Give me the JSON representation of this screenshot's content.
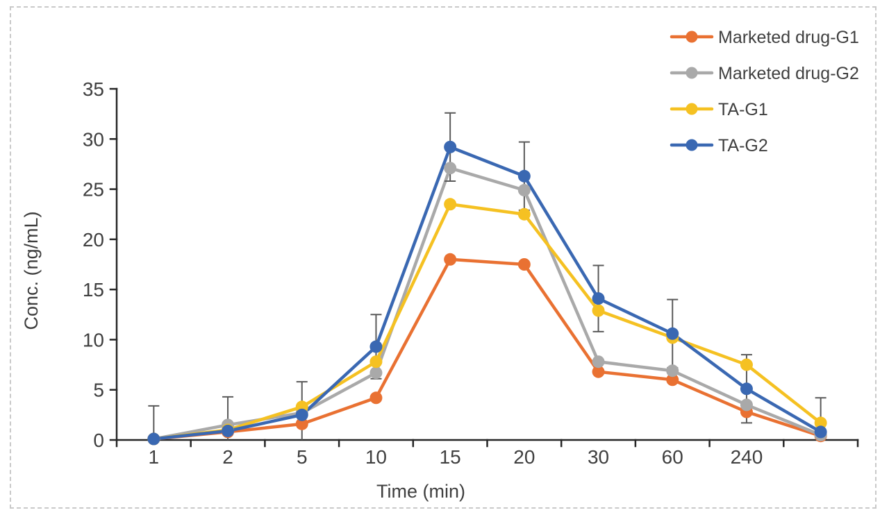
{
  "figure": {
    "background": "#ffffff",
    "border_color": "#c9c9c9",
    "axis_color": "#262626",
    "text_color": "#3f3f3f",
    "error_bar_color": "#595959"
  },
  "chart_data": {
    "type": "line",
    "title": "",
    "xlabel": "Time (min)",
    "ylabel": "Conc. (ng/mL)",
    "categories": [
      "1",
      "2",
      "5",
      "10",
      "15",
      "20",
      "30",
      "60",
      "240",
      ""
    ],
    "y_axis": {
      "min": 0,
      "max": 35,
      "step": 5
    },
    "grid": false,
    "legend_position": "top-right",
    "series": [
      {
        "name": "Marketed drug-G1",
        "color": "#E97132",
        "values": [
          0.1,
          0.8,
          1.6,
          4.2,
          18.0,
          17.5,
          6.8,
          6.0,
          2.8,
          0.4
        ]
      },
      {
        "name": "Marketed drug-G2",
        "color": "#A9A9A9",
        "values": [
          0.1,
          1.5,
          2.7,
          6.7,
          27.1,
          24.9,
          7.8,
          6.9,
          3.5,
          0.5
        ]
      },
      {
        "name": "TA-G1",
        "color": "#F5C122",
        "values": [
          0.1,
          1.0,
          3.3,
          7.8,
          23.5,
          22.5,
          12.9,
          10.2,
          7.5,
          1.7
        ]
      },
      {
        "name": "TA-G2",
        "color": "#3A68B2",
        "values": [
          0.1,
          0.9,
          2.5,
          9.3,
          29.2,
          26.3,
          14.1,
          10.6,
          5.1,
          0.8
        ],
        "error_bars": [
          3.3,
          3.4,
          3.3,
          3.2,
          3.4,
          3.4,
          3.3,
          3.4,
          3.4,
          3.4
        ]
      }
    ]
  }
}
